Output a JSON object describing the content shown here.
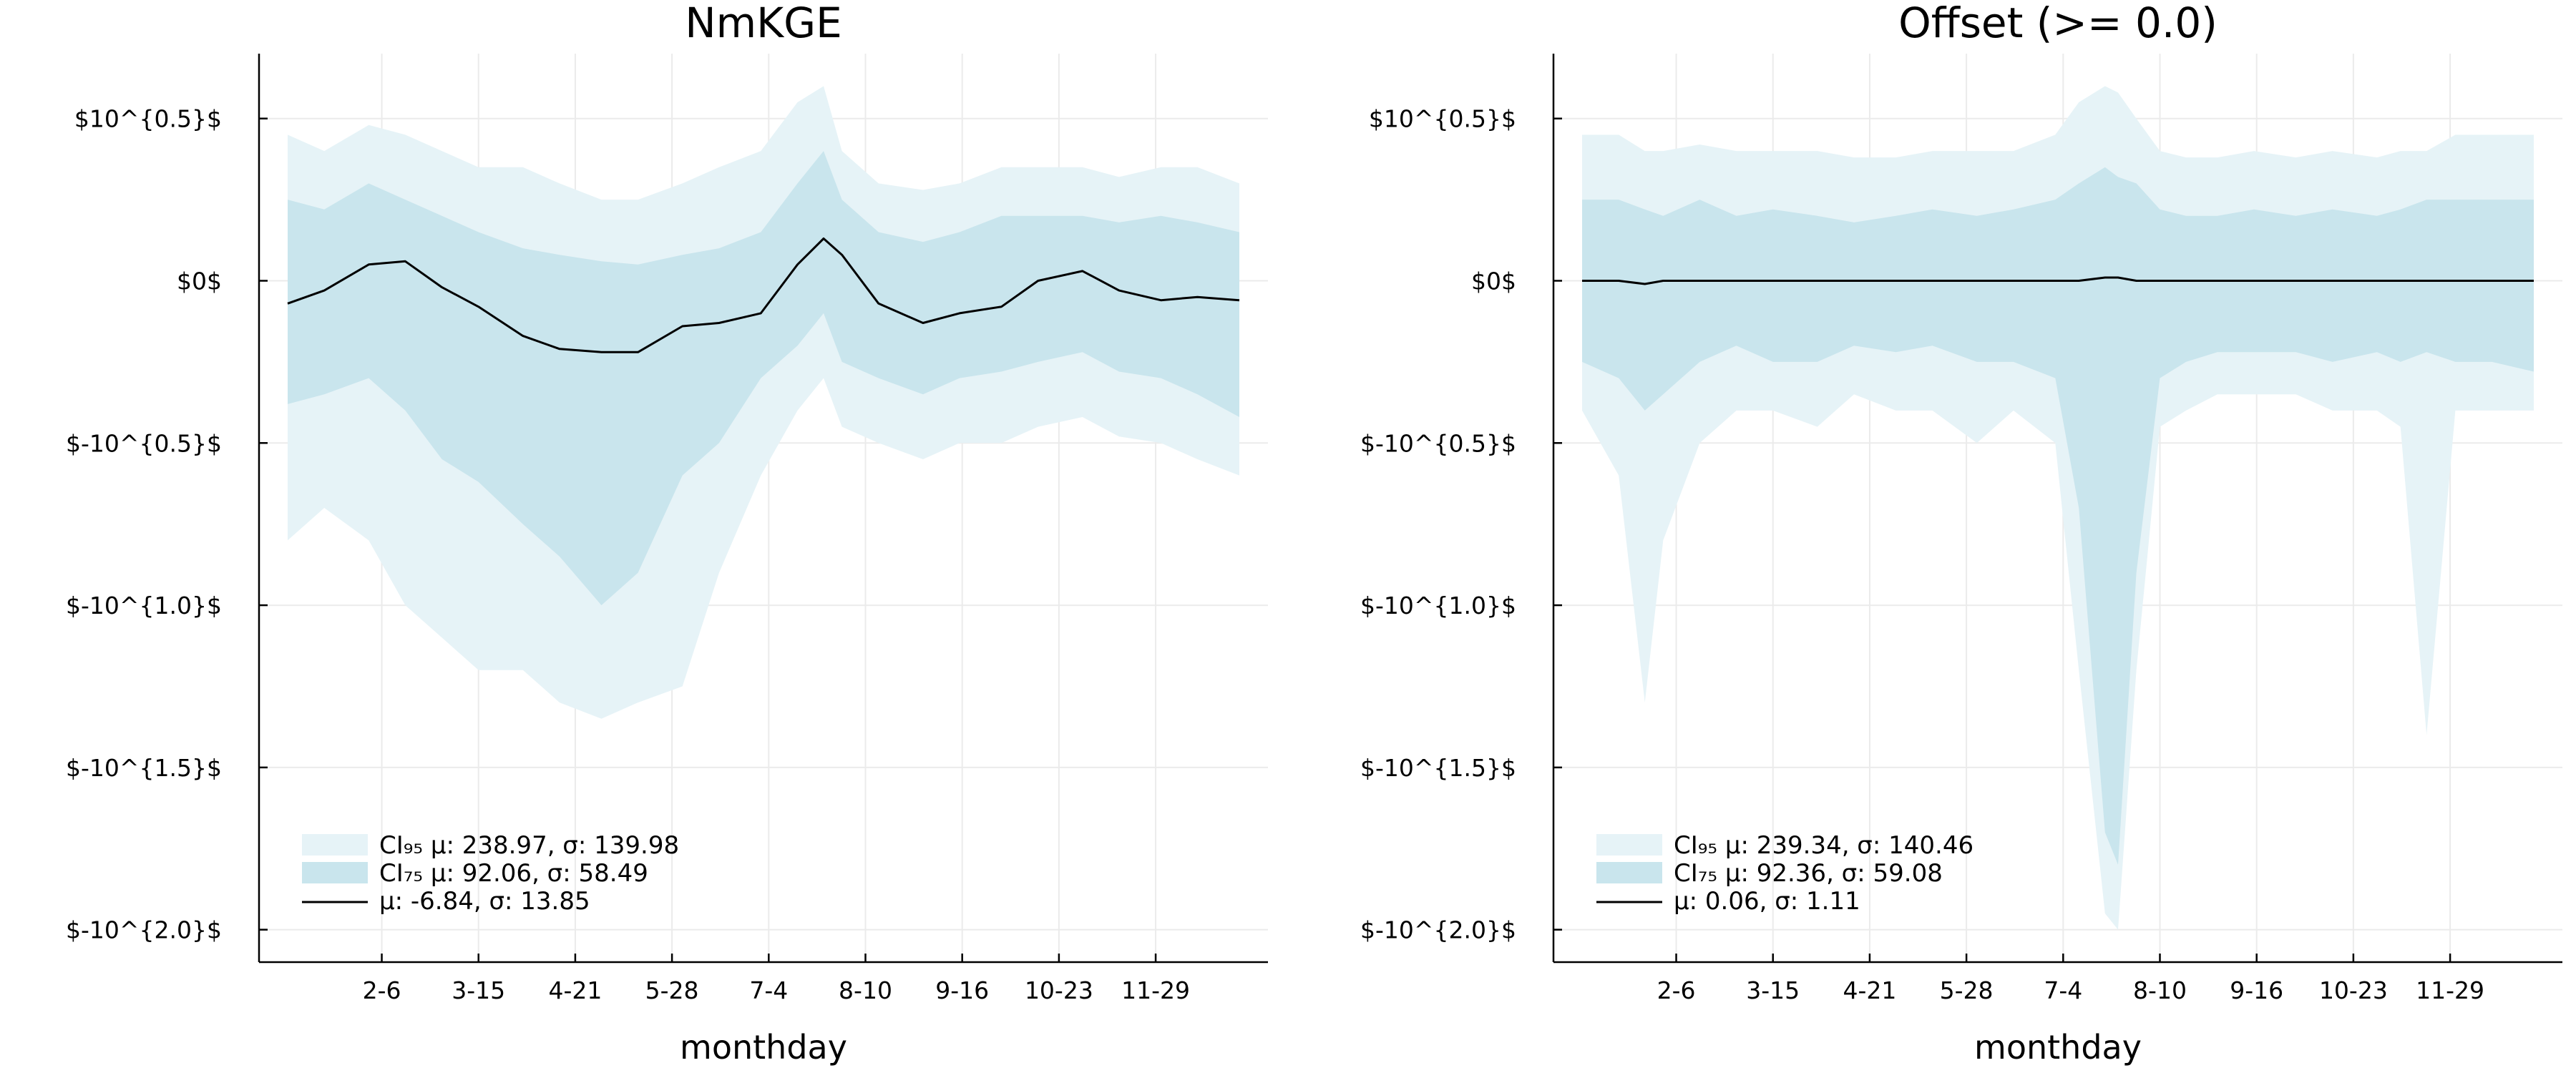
{
  "chart_data": [
    {
      "type": "area",
      "title": "NmKGE",
      "xlabel": "monthday",
      "x_ticks": [
        "2-6",
        "3-15",
        "4-21",
        "5-28",
        "7-4",
        "8-10",
        "9-16",
        "10-23",
        "11-29"
      ],
      "y_ticks": [
        "$10^{0.5}$",
        "$0$",
        "$-10^{0.5}$",
        "$-10^{1.0}$",
        "$-10^{1.5}$",
        "$-10^{2.0}$"
      ],
      "y_tick_values": [
        0.5,
        0,
        -0.5,
        -1.0,
        -1.5,
        -2.0
      ],
      "ylim": [
        -2.1,
        0.7
      ],
      "x_range": [
        "1-1",
        "12-31"
      ],
      "grid": true,
      "legend_position": "bottom-left",
      "legend": [
        {
          "label": "CI₉₅ μ: 238.97, σ: 139.98",
          "kind": "band-95"
        },
        {
          "label": "CI₇₅ μ: 92.06, σ: 58.49",
          "kind": "band-75"
        },
        {
          "label": " μ: -6.84, σ: 13.85",
          "kind": "line"
        }
      ],
      "x": [
        "1-1",
        "1-15",
        "2-1",
        "2-15",
        "3-1",
        "3-15",
        "4-1",
        "4-15",
        "5-1",
        "5-15",
        "6-1",
        "6-15",
        "7-1",
        "7-15",
        "7-25",
        "8-1",
        "8-15",
        "9-1",
        "9-15",
        "10-1",
        "10-15",
        "11-1",
        "11-15",
        "12-1",
        "12-15",
        "12-31"
      ],
      "mean": [
        -0.07,
        -0.03,
        0.05,
        0.06,
        -0.02,
        -0.08,
        -0.17,
        -0.21,
        -0.22,
        -0.22,
        -0.14,
        -0.13,
        -0.1,
        0.05,
        0.13,
        0.08,
        -0.07,
        -0.13,
        -0.1,
        -0.08,
        0.0,
        0.03,
        -0.03,
        -0.06,
        -0.05,
        -0.06
      ],
      "ci75_upper": [
        0.25,
        0.22,
        0.3,
        0.25,
        0.2,
        0.15,
        0.1,
        0.08,
        0.06,
        0.05,
        0.08,
        0.1,
        0.15,
        0.3,
        0.4,
        0.25,
        0.15,
        0.12,
        0.15,
        0.2,
        0.2,
        0.2,
        0.18,
        0.2,
        0.18,
        0.15
      ],
      "ci75_lower": [
        -0.38,
        -0.35,
        -0.3,
        -0.4,
        -0.55,
        -0.62,
        -0.75,
        -0.85,
        -1.0,
        -0.9,
        -0.6,
        -0.5,
        -0.3,
        -0.2,
        -0.1,
        -0.25,
        -0.3,
        -0.35,
        -0.3,
        -0.28,
        -0.25,
        -0.22,
        -0.28,
        -0.3,
        -0.35,
        -0.42
      ],
      "ci95_upper": [
        0.45,
        0.4,
        0.48,
        0.45,
        0.4,
        0.35,
        0.35,
        0.3,
        0.25,
        0.25,
        0.3,
        0.35,
        0.4,
        0.55,
        0.6,
        0.4,
        0.3,
        0.28,
        0.3,
        0.35,
        0.35,
        0.35,
        0.32,
        0.35,
        0.35,
        0.3
      ],
      "ci95_lower": [
        -0.8,
        -0.7,
        -0.8,
        -1.0,
        -1.1,
        -1.2,
        -1.2,
        -1.3,
        -1.35,
        -1.3,
        -1.25,
        -0.9,
        -0.6,
        -0.4,
        -0.3,
        -0.45,
        -0.5,
        -0.55,
        -0.5,
        -0.5,
        -0.45,
        -0.42,
        -0.48,
        -0.5,
        -0.55,
        -0.6
      ]
    },
    {
      "type": "area",
      "title": "Offset (>= 0.0)",
      "xlabel": "monthday",
      "x_ticks": [
        "2-6",
        "3-15",
        "4-21",
        "5-28",
        "7-4",
        "8-10",
        "9-16",
        "10-23",
        "11-29"
      ],
      "y_ticks": [
        "$10^{0.5}$",
        "$0$",
        "$-10^{0.5}$",
        "$-10^{1.0}$",
        "$-10^{1.5}$",
        "$-10^{2.0}$"
      ],
      "y_tick_values": [
        0.5,
        0,
        -0.5,
        -1.0,
        -1.5,
        -2.0
      ],
      "ylim": [
        -2.1,
        0.7
      ],
      "x_range": [
        "1-1",
        "12-31"
      ],
      "grid": true,
      "legend_position": "bottom-left",
      "legend": [
        {
          "label": "CI₉₅ μ: 239.34, σ: 140.46",
          "kind": "band-95"
        },
        {
          "label": "CI₇₅ μ: 92.36, σ: 59.08",
          "kind": "band-75"
        },
        {
          "label": " μ: 0.06, σ: 1.11",
          "kind": "line"
        }
      ],
      "x": [
        "1-1",
        "1-15",
        "1-25",
        "2-1",
        "2-15",
        "3-1",
        "3-15",
        "4-1",
        "4-15",
        "5-1",
        "5-15",
        "6-1",
        "6-15",
        "7-1",
        "7-10",
        "7-20",
        "7-25",
        "8-1",
        "8-10",
        "8-20",
        "9-1",
        "9-15",
        "10-1",
        "10-15",
        "11-1",
        "11-10",
        "11-20",
        "12-1",
        "12-15",
        "12-31"
      ],
      "mean": [
        0.0,
        0.0,
        -0.01,
        0.0,
        0.0,
        0.0,
        0.0,
        0.0,
        0.0,
        0.0,
        0.0,
        0.0,
        0.0,
        0.0,
        0.0,
        0.01,
        0.01,
        0.0,
        0.0,
        0.0,
        0.0,
        0.0,
        0.0,
        0.0,
        0.0,
        0.0,
        0.0,
        0.0,
        0.0,
        0.0
      ],
      "ci75_upper": [
        0.25,
        0.25,
        0.22,
        0.2,
        0.25,
        0.2,
        0.22,
        0.2,
        0.18,
        0.2,
        0.22,
        0.2,
        0.22,
        0.25,
        0.3,
        0.35,
        0.32,
        0.3,
        0.22,
        0.2,
        0.2,
        0.22,
        0.2,
        0.22,
        0.2,
        0.22,
        0.25,
        0.25,
        0.25,
        0.25
      ],
      "ci75_lower": [
        -0.25,
        -0.3,
        -0.4,
        -0.35,
        -0.25,
        -0.2,
        -0.25,
        -0.25,
        -0.2,
        -0.22,
        -0.2,
        -0.25,
        -0.25,
        -0.3,
        -0.7,
        -1.7,
        -1.8,
        -0.9,
        -0.3,
        -0.25,
        -0.22,
        -0.22,
        -0.22,
        -0.25,
        -0.22,
        -0.25,
        -0.22,
        -0.25,
        -0.25,
        -0.28
      ],
      "ci95_upper": [
        0.45,
        0.45,
        0.4,
        0.4,
        0.42,
        0.4,
        0.4,
        0.4,
        0.38,
        0.38,
        0.4,
        0.4,
        0.4,
        0.45,
        0.55,
        0.6,
        0.58,
        0.5,
        0.4,
        0.38,
        0.38,
        0.4,
        0.38,
        0.4,
        0.38,
        0.4,
        0.4,
        0.45,
        0.45,
        0.45
      ],
      "ci95_lower": [
        -0.4,
        -0.6,
        -1.3,
        -0.8,
        -0.5,
        -0.4,
        -0.4,
        -0.45,
        -0.35,
        -0.4,
        -0.4,
        -0.5,
        -0.4,
        -0.5,
        -1.2,
        -1.95,
        -2.0,
        -1.2,
        -0.45,
        -0.4,
        -0.35,
        -0.35,
        -0.35,
        -0.4,
        -0.4,
        -0.45,
        -1.4,
        -0.4,
        -0.4,
        -0.4
      ]
    }
  ]
}
